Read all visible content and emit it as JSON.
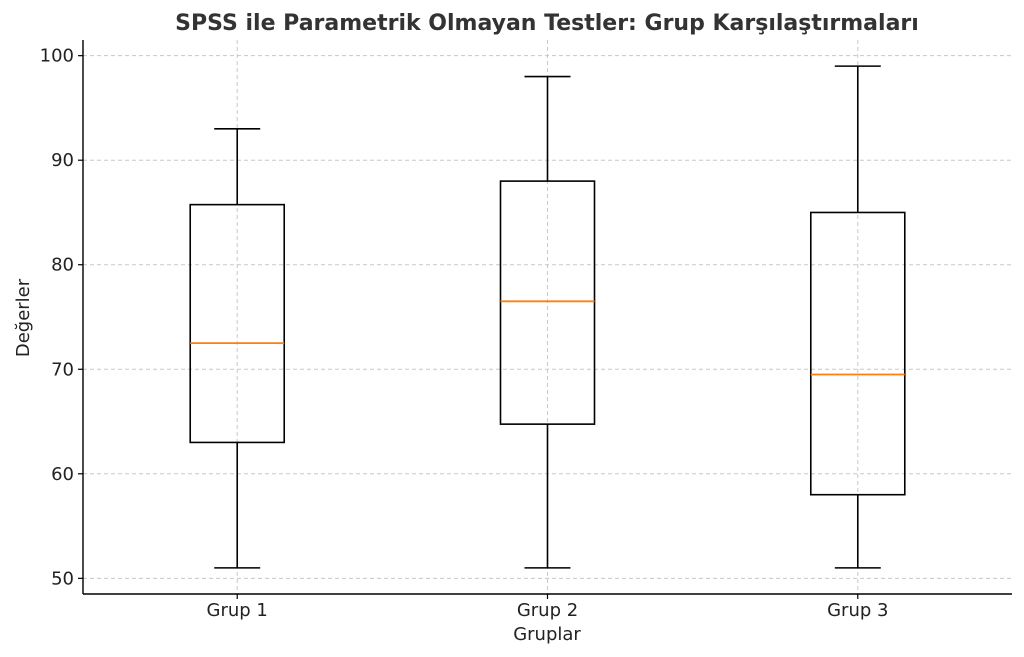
{
  "chart_data": {
    "type": "boxplot",
    "title": "SPSS ile Parametrik Olmayan Testler: Grup Karşılaştırmaları",
    "xlabel": "Gruplar",
    "ylabel": "Değerler",
    "ylim": [
      48.5,
      101.5
    ],
    "yticks": [
      "50",
      "60",
      "70",
      "80",
      "90",
      "100"
    ],
    "grid": true,
    "colors": {
      "box": "#000000",
      "median": "#ff7f0e",
      "grid": "#c8c8c8"
    },
    "categories": [
      "Grup 1",
      "Grup 2",
      "Grup 3"
    ],
    "boxes": [
      {
        "min": 51,
        "q1": 63,
        "median": 72.5,
        "q3": 85.75,
        "max": 93
      },
      {
        "min": 51,
        "q1": 64.75,
        "median": 76.5,
        "q3": 88,
        "max": 98
      },
      {
        "min": 51,
        "q1": 58,
        "median": 69.5,
        "q3": 85,
        "max": 99
      }
    ]
  }
}
